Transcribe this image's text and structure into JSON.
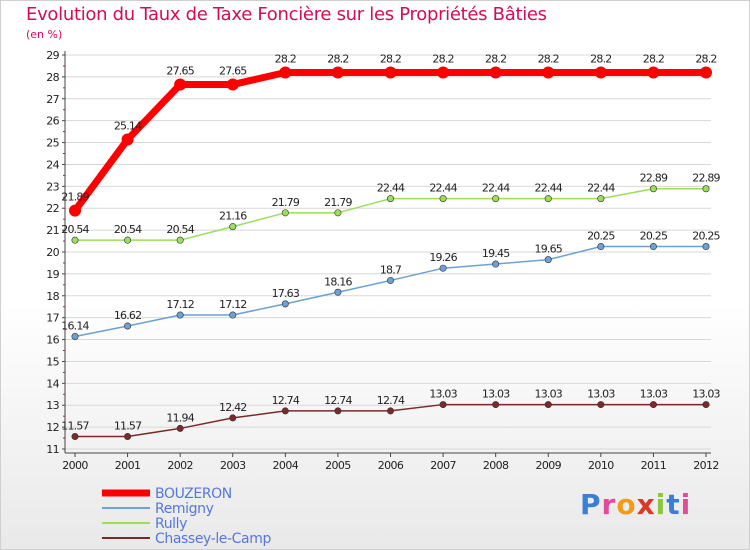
{
  "title": "Evolution du Taux de Taxe Foncière sur les Propriétés Bâties",
  "subtitle": "(en %)",
  "logo_text": "Proxiti",
  "colors": {
    "title": "#d40b59",
    "grid": "#d8d8d8",
    "axis": "#444444"
  },
  "chart_data": {
    "type": "line",
    "x": [
      "2000",
      "2001",
      "2002",
      "2003",
      "2004",
      "2005",
      "2006",
      "2007",
      "2008",
      "2009",
      "2010",
      "2011",
      "2012"
    ],
    "ylim": [
      11,
      29
    ],
    "yticks": [
      11,
      12,
      13,
      14,
      15,
      16,
      17,
      18,
      19,
      20,
      21,
      22,
      23,
      24,
      25,
      26,
      27,
      28,
      29
    ],
    "grid": true,
    "legend_position": "bottom-left",
    "series": [
      {
        "name": "BOUZERON",
        "color": "#ff0000",
        "values": [
          21.89,
          25.14,
          27.65,
          27.65,
          28.2,
          28.2,
          28.2,
          28.2,
          28.2,
          28.2,
          28.2,
          28.2,
          28.2
        ],
        "labels": [
          "21.89",
          "25.14",
          "27.65",
          "27.65",
          "28.2",
          "28.2",
          "28.2",
          "28.2",
          "28.2",
          "28.2",
          "28.2",
          "28.2",
          "28.2"
        ]
      },
      {
        "name": "Remigny",
        "color": "#6ba1d4",
        "values": [
          16.14,
          16.62,
          17.12,
          17.12,
          17.63,
          18.16,
          18.7,
          19.26,
          19.45,
          19.65,
          20.25,
          20.25,
          20.25
        ],
        "labels": [
          "16.14",
          "16.62",
          "17.12",
          "17.12",
          "17.63",
          "18.16",
          "18.7",
          "19.26",
          "19.45",
          "19.65",
          "20.25",
          "20.25",
          "20.25"
        ]
      },
      {
        "name": "Rully",
        "color": "#9ade5a",
        "values": [
          20.54,
          20.54,
          20.54,
          21.16,
          21.79,
          21.79,
          22.44,
          22.44,
          22.44,
          22.44,
          22.44,
          22.89,
          22.89
        ],
        "labels": [
          "20.54",
          "20.54",
          "20.54",
          "21.16",
          "21.79",
          "21.79",
          "22.44",
          "22.44",
          "22.44",
          "22.44",
          "22.44",
          "22.89",
          "22.89"
        ]
      },
      {
        "name": "Chassey-le-Camp",
        "color": "#7a2a2a",
        "values": [
          11.57,
          11.57,
          11.94,
          12.42,
          12.74,
          12.74,
          12.74,
          13.03,
          13.03,
          13.03,
          13.03,
          13.03,
          13.03
        ],
        "labels": [
          "11.57",
          "11.57",
          "11.94",
          "12.42",
          "12.74",
          "12.74",
          "12.74",
          "13.03",
          "13.03",
          "13.03",
          "13.03",
          "13.03",
          "13.03"
        ]
      }
    ]
  }
}
